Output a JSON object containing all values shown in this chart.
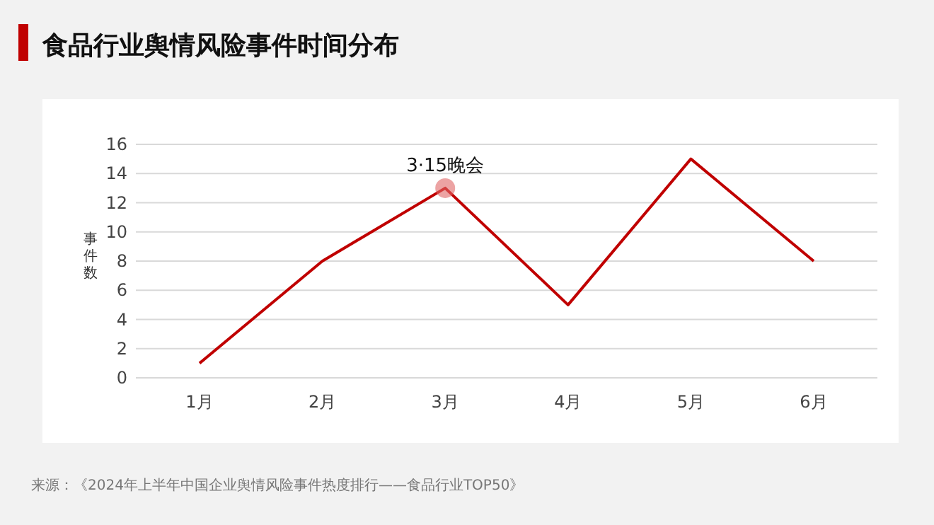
{
  "chart_data": {
    "type": "line",
    "title": "食品行业舆情风险事件时间分布",
    "ylabel": "事件数",
    "categories": [
      "1月",
      "2月",
      "3月",
      "4月",
      "5月",
      "6月"
    ],
    "series": [
      {
        "color": "#c00000",
        "values": [
          1,
          8,
          13,
          5,
          15,
          8
        ]
      }
    ],
    "ylim": [
      0,
      16
    ],
    "yticks": [
      0,
      2,
      4,
      6,
      8,
      10,
      12,
      14,
      16
    ],
    "grid": "y",
    "marker": "none",
    "line_style": "solid",
    "annotations": [
      {
        "text": "3·15晚会",
        "x": "3月",
        "y": 13
      },
      "来源：《2024年上半年中国企业舆情风险事件热度排行——食品行业TOP50》"
    ]
  }
}
